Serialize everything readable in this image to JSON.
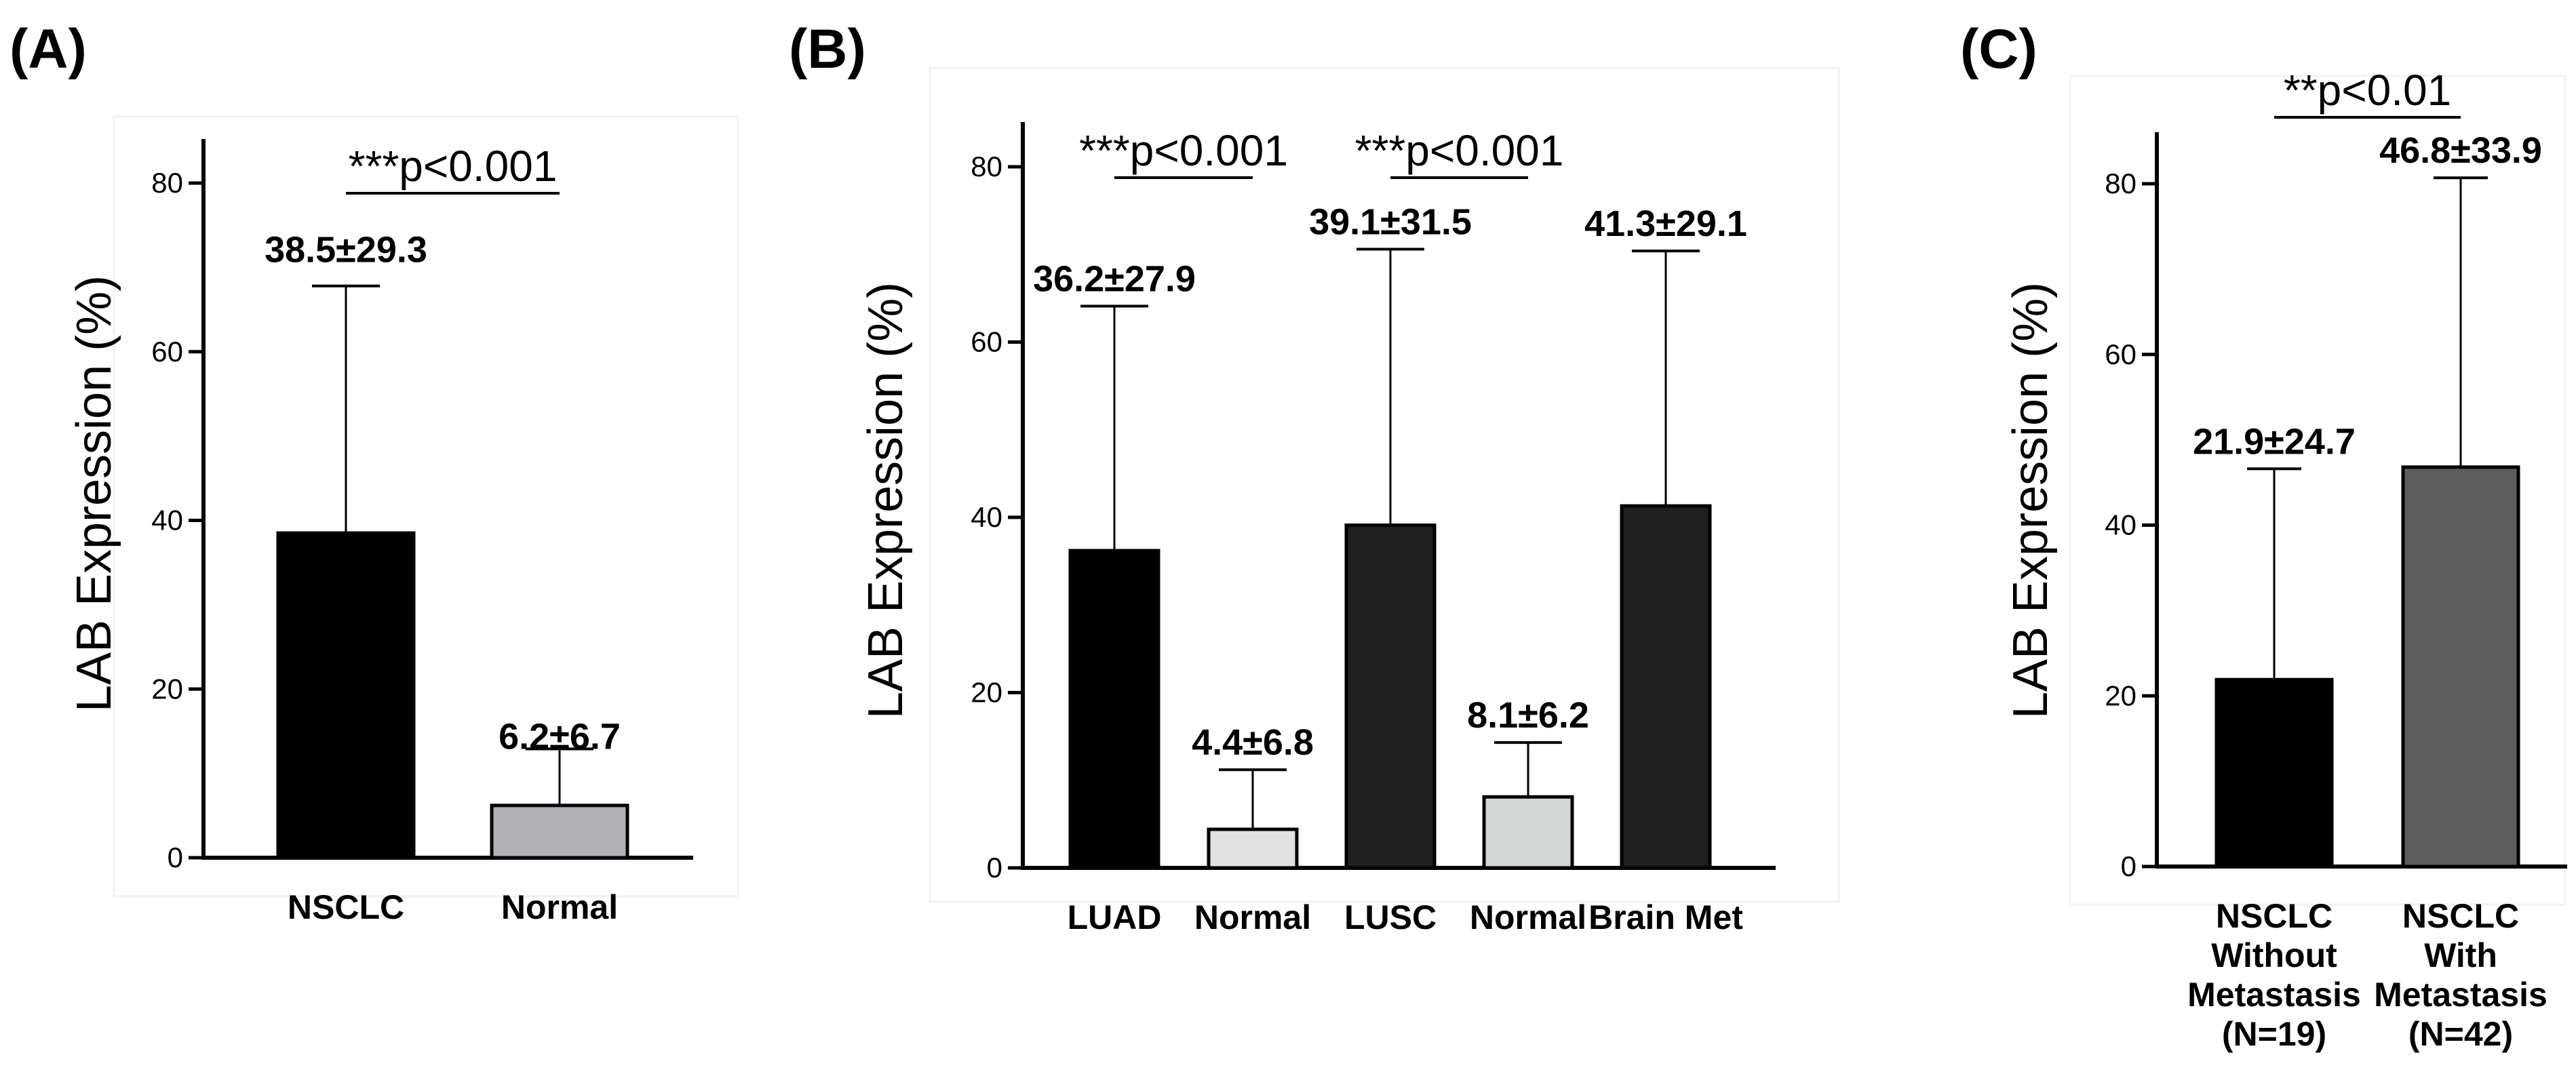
{
  "chart_data": [
    {
      "type": "bar",
      "panel": "(A)",
      "title": "",
      "xlabel": "",
      "ylabel": "LAB Expression (%)",
      "ylim": [
        0,
        85
      ],
      "yticks": [
        "0",
        "20",
        "40",
        "60",
        "80"
      ],
      "grid": false,
      "categories": [
        [
          "NSCLC"
        ],
        [
          "Normal"
        ]
      ],
      "values": [
        38.5,
        6.2
      ],
      "errors": [
        29.3,
        6.7
      ],
      "value_labels": [
        "38.5±29.3",
        "6.2±6.7"
      ],
      "colors": [
        "#000000",
        "#b2b1b6"
      ],
      "significance": [
        {
          "label": "***p<0.001",
          "from": 0,
          "to": 1
        }
      ]
    },
    {
      "type": "bar",
      "panel": "(B)",
      "title": "",
      "xlabel": "",
      "ylabel": "LAB Expression (%)",
      "ylim": [
        0,
        85
      ],
      "yticks": [
        "0",
        "20",
        "40",
        "60",
        "80"
      ],
      "grid": false,
      "categories": [
        [
          "LUAD"
        ],
        [
          "Normal"
        ],
        [
          "LUSC"
        ],
        [
          "Normal"
        ],
        [
          "Brain Met"
        ]
      ],
      "values": [
        36.2,
        4.4,
        39.1,
        8.1,
        41.3
      ],
      "errors": [
        27.9,
        6.8,
        31.5,
        6.2,
        29.1
      ],
      "value_labels": [
        "36.2±27.9",
        "4.4±6.8",
        "39.1±31.5",
        "8.1±6.2",
        "41.3±29.1"
      ],
      "colors": [
        "#000000",
        "#e2e2e2",
        "#202020",
        "#d4d5d5",
        "#202020"
      ],
      "significance": [
        {
          "label": "***p<0.001",
          "from": 0,
          "to": 1
        },
        {
          "label": "***p<0.001",
          "from": 2,
          "to": 3
        }
      ]
    },
    {
      "type": "bar",
      "panel": "(C)",
      "title": "",
      "xlabel": "",
      "ylabel": "LAB Expression (%)",
      "ylim": [
        0,
        85
      ],
      "yticks": [
        "0",
        "20",
        "40",
        "60",
        "80"
      ],
      "grid": false,
      "categories": [
        [
          "NSCLC",
          "Without",
          "Metastasis",
          "(N=19)"
        ],
        [
          "NSCLC",
          "With",
          "Metastasis",
          "(N=42)"
        ]
      ],
      "values": [
        21.9,
        46.8
      ],
      "errors": [
        24.7,
        33.9
      ],
      "value_labels": [
        "21.9±24.7",
        "46.8±33.9"
      ],
      "colors": [
        "#000000",
        "#5d5e5d"
      ],
      "significance": [
        {
          "label": "**p<0.01",
          "from": 0,
          "to": 1
        }
      ]
    }
  ]
}
